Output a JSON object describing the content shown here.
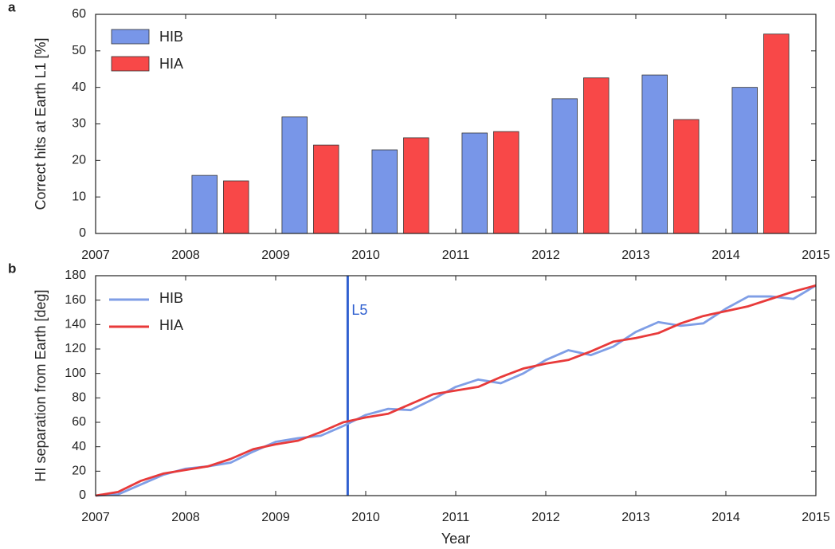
{
  "chart_data": [
    {
      "type": "bar",
      "panel_label": "a",
      "ylabel": "Correct hits at Earth L1 [%]",
      "x": [
        2008,
        2009,
        2010,
        2011,
        2012,
        2013,
        2014
      ],
      "series": [
        {
          "name": "HIB",
          "color": "#7896e8",
          "values": [
            15.9,
            31.9,
            22.9,
            27.5,
            36.9,
            43.4,
            40
          ]
        },
        {
          "name": "HIA",
          "color": "#f84848",
          "values": [
            14.4,
            24.2,
            26.2,
            27.9,
            42.6,
            31.2,
            54.6
          ]
        }
      ],
      "xlim": [
        2007,
        2015
      ],
      "xticks": [
        2007,
        2008,
        2009,
        2010,
        2011,
        2012,
        2013,
        2014,
        2015
      ],
      "ylim": [
        0,
        60
      ],
      "yticks": [
        0,
        10,
        20,
        30,
        40,
        50,
        60
      ],
      "legend": "upper left"
    },
    {
      "type": "line",
      "panel_label": "b",
      "ylabel": "HI separation from Earth [deg]",
      "xlabel": "Year",
      "x": [
        2007,
        2007.25,
        2007.5,
        2007.75,
        2008,
        2008.25,
        2008.5,
        2008.75,
        2009,
        2009.25,
        2009.5,
        2009.75,
        2010,
        2010.25,
        2010.5,
        2010.75,
        2011,
        2011.25,
        2011.5,
        2011.75,
        2012,
        2012.25,
        2012.5,
        2012.75,
        2013,
        2013.25,
        2013.5,
        2013.75,
        2014,
        2014.25,
        2014.5,
        2014.75,
        2015
      ],
      "series": [
        {
          "name": "HIB",
          "color": "#7f9ee6",
          "values": [
            0,
            1,
            9,
            17,
            22,
            24,
            27,
            36,
            44,
            47,
            49,
            57,
            66,
            71,
            70,
            79,
            89,
            95,
            92,
            100,
            111,
            119,
            115,
            122,
            134,
            142,
            139,
            141,
            153,
            163,
            163,
            161,
            172
          ]
        },
        {
          "name": "HIA",
          "color": "#e83a3a",
          "values": [
            0,
            3,
            12,
            18,
            21,
            24,
            30,
            38,
            42,
            45,
            52,
            60,
            64,
            67,
            75,
            83,
            86,
            89,
            97,
            104,
            108,
            111,
            118,
            126,
            129,
            133,
            141,
            147,
            151,
            155,
            161,
            167,
            172
          ]
        }
      ],
      "vline": {
        "x": 2009.8,
        "label": "L5",
        "color": "#3060d0"
      },
      "xlim": [
        2007,
        2015
      ],
      "xticks": [
        2007,
        2008,
        2009,
        2010,
        2011,
        2012,
        2013,
        2014,
        2015
      ],
      "ylim": [
        0,
        180
      ],
      "yticks": [
        0,
        20,
        40,
        60,
        80,
        100,
        120,
        140,
        160,
        180
      ],
      "legend": "upper left"
    }
  ]
}
